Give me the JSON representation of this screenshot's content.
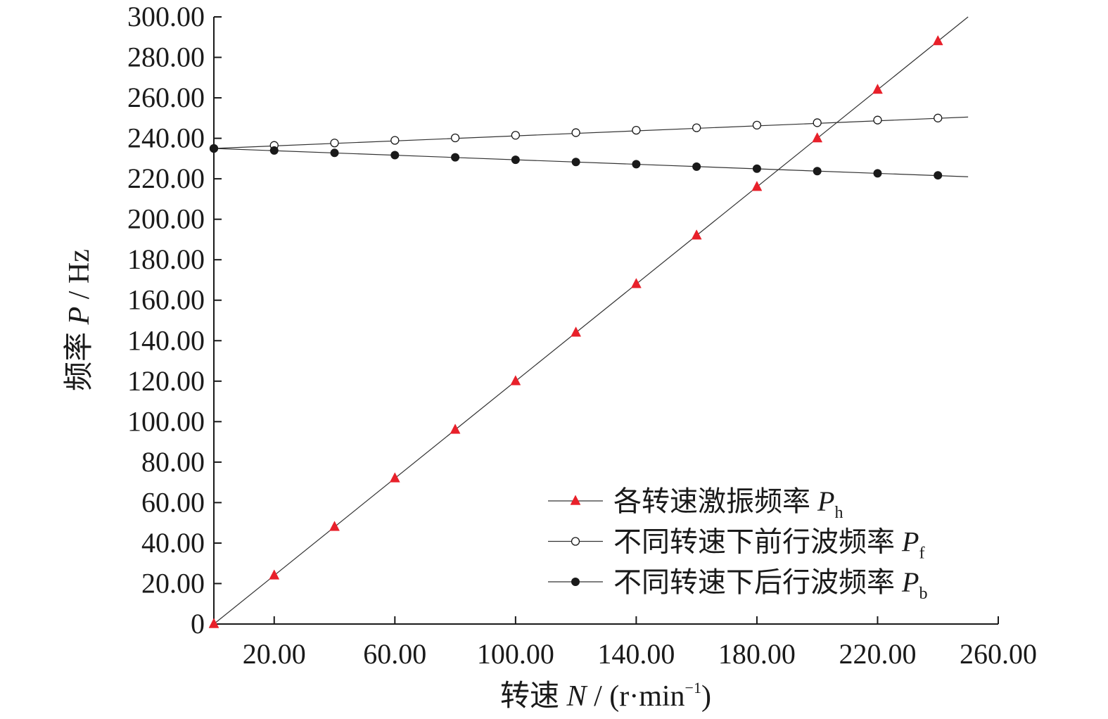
{
  "chart_data": {
    "type": "line",
    "xlabel_prefix": "转速",
    "xlabel_var": "N",
    "xlabel_unit": " / (r·min",
    "xlabel_sup": "−1",
    "xlabel_close": ")",
    "ylabel_prefix": "频率",
    "ylabel_var": "P",
    "ylabel_unit": " / Hz",
    "xlim": [
      0,
      260
    ],
    "ylim": [
      0,
      300
    ],
    "x_ticks": [
      20,
      60,
      100,
      140,
      180,
      220,
      260
    ],
    "x_tick_labels": [
      "20.00",
      "60.00",
      "100.00",
      "140.00",
      "180.00",
      "220.00",
      "260.00"
    ],
    "y_ticks": [
      0,
      20,
      40,
      60,
      80,
      100,
      120,
      140,
      160,
      180,
      200,
      220,
      240,
      260,
      280,
      300
    ],
    "y_tick_labels": [
      "0",
      "20.00",
      "40.00",
      "60.00",
      "80.00",
      "100.00",
      "120.00",
      "140.00",
      "160.00",
      "180.00",
      "200.00",
      "220.00",
      "240.00",
      "260.00",
      "280.00",
      "300.00"
    ],
    "legend_position": "bottom-right",
    "series": [
      {
        "name": "各转速激振频率",
        "name_var": "P",
        "name_sub": "h",
        "marker": "triangle",
        "color": "#e8202a",
        "x": [
          0,
          20,
          40,
          60,
          80,
          100,
          120,
          140,
          160,
          180,
          200,
          220,
          240
        ],
        "y": [
          0,
          24,
          48,
          72,
          96,
          120,
          144,
          168,
          192,
          216,
          240,
          264,
          288
        ],
        "fit_line": {
          "x": [
            0,
            250
          ],
          "y": [
            0,
            300
          ]
        }
      },
      {
        "name": "不同转速下前行波频率",
        "name_var": "P",
        "name_sub": "f",
        "marker": "open-circle",
        "color": "#1a1a1a",
        "x": [
          0,
          20,
          40,
          60,
          80,
          100,
          120,
          140,
          160,
          180,
          200,
          220,
          240
        ],
        "y": [
          235,
          236.5,
          237.7,
          239,
          240.2,
          241.5,
          242.8,
          244,
          245.2,
          246.5,
          247.7,
          249,
          250
        ],
        "fit_line": {
          "x": [
            0,
            250
          ],
          "y": [
            235,
            250.5
          ]
        }
      },
      {
        "name": "不同转速下后行波频率",
        "name_var": "P",
        "name_sub": "b",
        "marker": "filled-circle",
        "color": "#1a1a1a",
        "x": [
          0,
          20,
          40,
          60,
          80,
          100,
          120,
          140,
          160,
          180,
          200,
          220,
          240
        ],
        "y": [
          235,
          234,
          232.8,
          231.7,
          230.6,
          229.4,
          228.3,
          227.2,
          226,
          225,
          223.8,
          222.7,
          221.7
        ],
        "fit_line": {
          "x": [
            0,
            250
          ],
          "y": [
            235,
            221
          ]
        }
      }
    ]
  }
}
